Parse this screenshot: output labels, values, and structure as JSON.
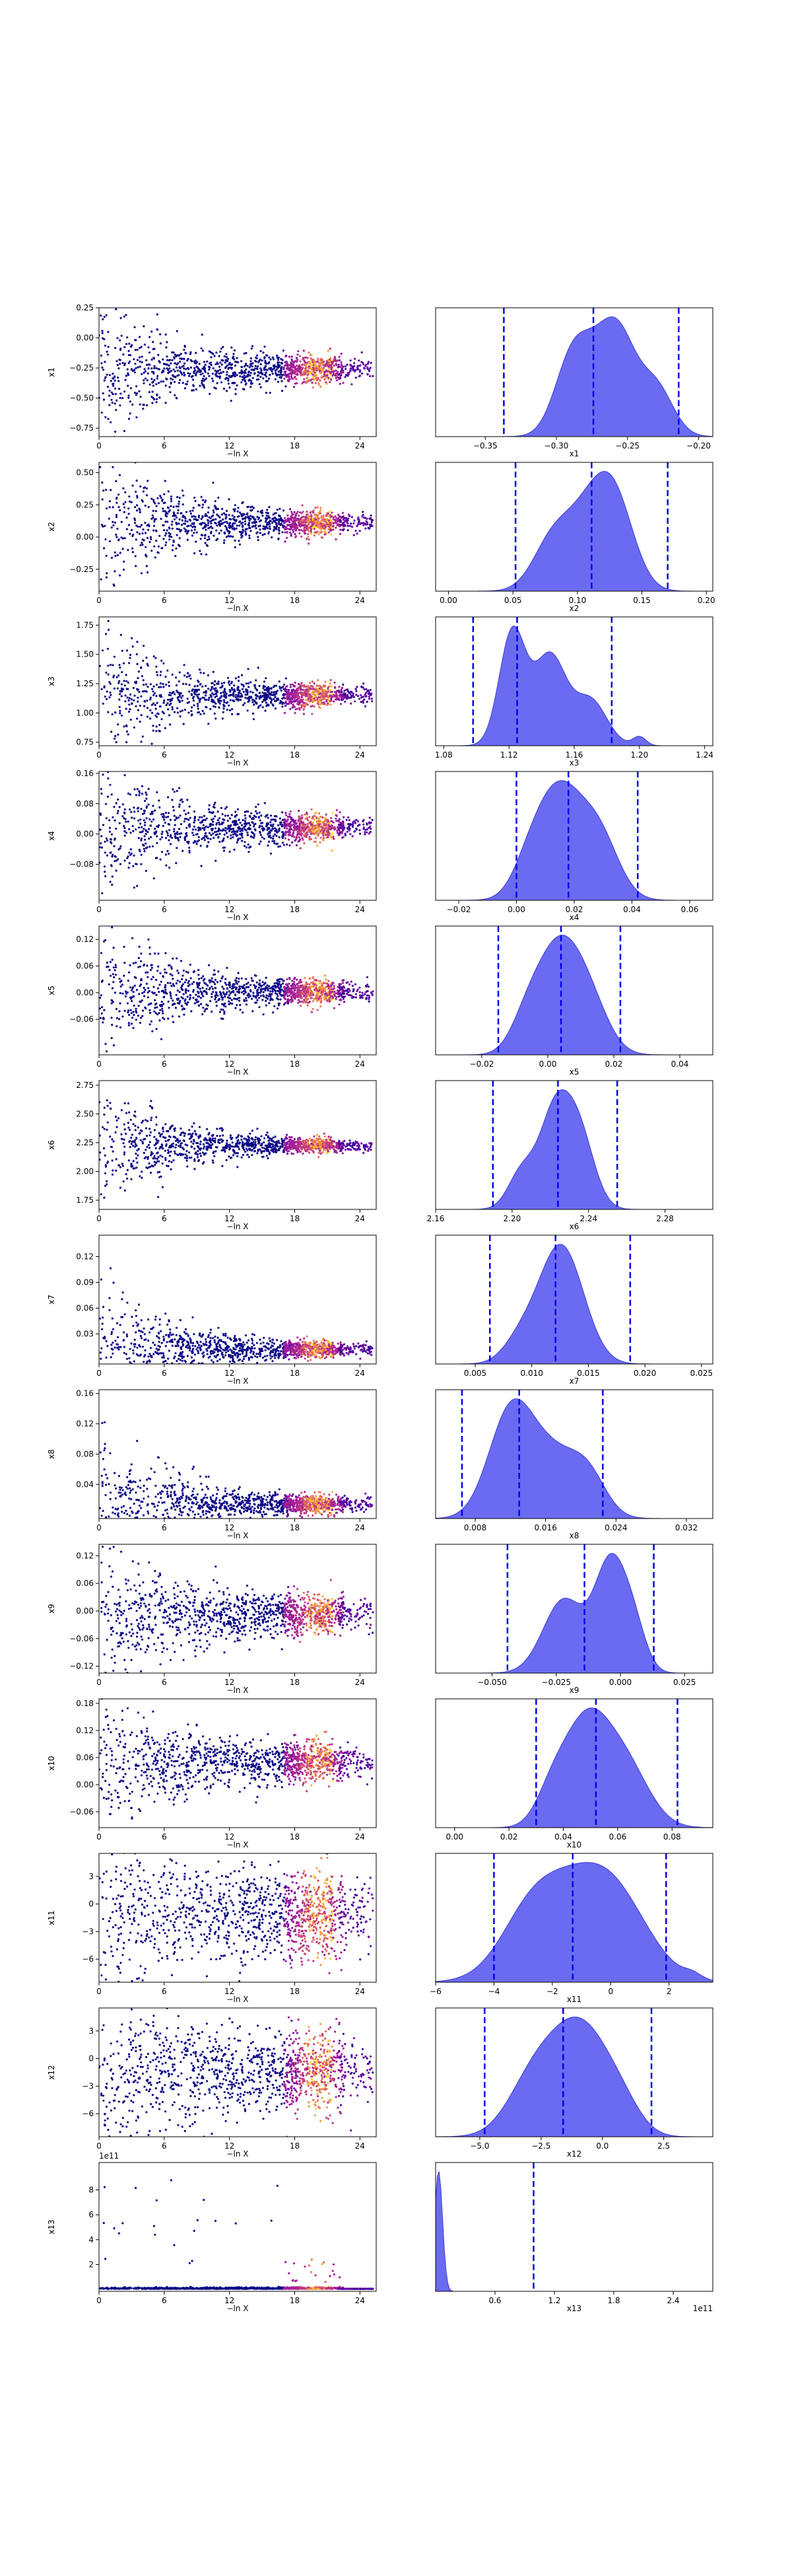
{
  "chart_data": {
    "type": "scatter",
    "colors": {
      "scatter_low": "#0d0887",
      "scatter_high": "#f0f921",
      "kde_fill": "#5b5bf0",
      "quantile_line": "#0000ee"
    },
    "rows": [
      {
        "ylabel": "x1",
        "xlabel": "−ln X",
        "trace": {
          "ylim": [
            -0.82,
            0.25
          ],
          "yticks": [
            "0.25",
            "0.00",
            "−0.25",
            "−0.50",
            "−0.75"
          ],
          "ytick_vals": [
            0.25,
            0,
            -0.25,
            -0.5,
            -0.75
          ],
          "center": -0.26,
          "init_lo": -0.75,
          "init_hi": 0.2,
          "final_spread": 0.05
        },
        "marginal": {
          "xlabel": "x1",
          "xlim": [
            -0.385,
            -0.19
          ],
          "xticks": [
            "−0.35",
            "−0.30",
            "−0.25",
            "−0.20"
          ],
          "xtick_vals": [
            -0.35,
            -0.3,
            -0.25,
            -0.2
          ],
          "quantiles": [
            -0.337,
            -0.274,
            -0.214
          ],
          "peaks": [
            [
              -0.27,
              1.0,
              0.016
            ],
            [
              -0.255,
              0.9,
              0.012
            ],
            [
              -0.29,
              0.85,
              0.012
            ],
            [
              -0.23,
              0.7,
              0.012
            ]
          ]
        }
      },
      {
        "ylabel": "x2",
        "xlabel": "−ln X",
        "trace": {
          "ylim": [
            -0.42,
            0.58
          ],
          "yticks": [
            "0.50",
            "0.25",
            "0.00",
            "−0.25"
          ],
          "ytick_vals": [
            0.5,
            0.25,
            0,
            -0.25
          ],
          "center": 0.11,
          "init_lo": -0.35,
          "init_hi": 0.55,
          "final_spread": 0.04
        },
        "marginal": {
          "xlabel": "x2",
          "xlim": [
            -0.01,
            0.205
          ],
          "xticks": [
            "0.00",
            "0.05",
            "0.10",
            "0.15",
            "0.20"
          ],
          "xtick_vals": [
            0,
            0.05,
            0.1,
            0.15,
            0.2
          ],
          "quantiles": [
            0.052,
            0.111,
            0.17
          ],
          "peaks": [
            [
              0.11,
              1.0,
              0.018
            ],
            [
              0.13,
              0.9,
              0.015
            ],
            [
              0.08,
              0.6,
              0.015
            ]
          ]
        }
      },
      {
        "ylabel": "x3",
        "xlabel": "−ln X",
        "trace": {
          "ylim": [
            0.72,
            1.82
          ],
          "yticks": [
            "1.75",
            "1.50",
            "1.25",
            "1.00",
            "0.75"
          ],
          "ytick_vals": [
            1.75,
            1.5,
            1.25,
            1,
            0.75
          ],
          "center": 1.15,
          "init_lo": 0.75,
          "init_hi": 1.8,
          "final_spread": 0.04
        },
        "marginal": {
          "xlabel": "x3",
          "xlim": [
            1.075,
            1.245
          ],
          "xticks": [
            "1.08",
            "1.12",
            "1.16",
            "1.20",
            "1.24"
          ],
          "xtick_vals": [
            1.08,
            1.12,
            1.16,
            1.2,
            1.24
          ],
          "quantiles": [
            1.098,
            1.125,
            1.183
          ],
          "peaks": [
            [
              1.122,
              1.0,
              0.008
            ],
            [
              1.145,
              0.8,
              0.01
            ],
            [
              1.17,
              0.4,
              0.01
            ],
            [
              1.2,
              0.08,
              0.004
            ]
          ]
        }
      },
      {
        "ylabel": "x4",
        "xlabel": "−ln X",
        "trace": {
          "ylim": [
            -0.175,
            0.165
          ],
          "yticks": [
            "0.16",
            "0.08",
            "0.00",
            "−0.08"
          ],
          "ytick_vals": [
            0.16,
            0.08,
            0,
            -0.08
          ],
          "center": 0.017,
          "init_lo": -0.15,
          "init_hi": 0.15,
          "final_spread": 0.015
        },
        "marginal": {
          "xlabel": "x4",
          "xlim": [
            -0.028,
            0.068
          ],
          "xticks": [
            "−0.02",
            "0.00",
            "0.02",
            "0.04",
            "0.06"
          ],
          "xtick_vals": [
            -0.02,
            0,
            0.02,
            0.04,
            0.06
          ],
          "quantiles": [
            0.0,
            0.018,
            0.042
          ],
          "peaks": [
            [
              0.015,
              1.0,
              0.007
            ],
            [
              0.028,
              0.7,
              0.007
            ],
            [
              0.005,
              0.4,
              0.006
            ]
          ]
        }
      },
      {
        "ylabel": "x5",
        "xlabel": "−ln X",
        "trace": {
          "ylim": [
            -0.14,
            0.15
          ],
          "yticks": [
            "0.12",
            "0.06",
            "0.00",
            "−0.06"
          ],
          "ytick_vals": [
            0.12,
            0.06,
            0,
            -0.06
          ],
          "center": 0.003,
          "init_lo": -0.12,
          "init_hi": 0.14,
          "final_spread": 0.012
        },
        "marginal": {
          "xlabel": "x5",
          "xlim": [
            -0.034,
            0.05
          ],
          "xticks": [
            "−0.02",
            "0.00",
            "0.02",
            "0.04"
          ],
          "xtick_vals": [
            -0.02,
            0,
            0.02,
            0.04
          ],
          "quantiles": [
            -0.015,
            0.004,
            0.022
          ],
          "peaks": [
            [
              0.003,
              1.0,
              0.006
            ],
            [
              0.012,
              0.6,
              0.006
            ],
            [
              -0.006,
              0.4,
              0.005
            ]
          ]
        }
      },
      {
        "ylabel": "x6",
        "xlabel": "−ln X",
        "trace": {
          "ylim": [
            1.67,
            2.79
          ],
          "yticks": [
            "2.75",
            "2.50",
            "2.25",
            "2.00",
            "1.75"
          ],
          "ytick_vals": [
            2.75,
            2.5,
            2.25,
            2,
            1.75
          ],
          "center": 2.225,
          "init_lo": 1.8,
          "init_hi": 2.75,
          "final_spread": 0.025
        },
        "marginal": {
          "xlabel": "x6",
          "xlim": [
            2.16,
            2.305
          ],
          "xticks": [
            "2.16",
            "2.20",
            "2.24",
            "2.28"
          ],
          "xtick_vals": [
            2.16,
            2.2,
            2.24,
            2.28
          ],
          "quantiles": [
            2.19,
            2.224,
            2.255
          ],
          "peaks": [
            [
              2.222,
              1.0,
              0.008
            ],
            [
              2.235,
              0.8,
              0.008
            ],
            [
              2.205,
              0.4,
              0.007
            ]
          ]
        }
      },
      {
        "ylabel": "x7",
        "xlabel": "−ln X",
        "trace": {
          "ylim": [
            -0.005,
            0.145
          ],
          "yticks": [
            "0.12",
            "0.09",
            "0.06",
            "0.03"
          ],
          "ytick_vals": [
            0.12,
            0.09,
            0.06,
            0.03
          ],
          "center": 0.012,
          "init_lo": 0.0,
          "init_hi": 0.14,
          "final_spread": 0.004
        },
        "marginal": {
          "xlabel": "x7",
          "xlim": [
            0.0015,
            0.026
          ],
          "xticks": [
            "0.005",
            "0.010",
            "0.015",
            "0.020",
            "0.025"
          ],
          "xtick_vals": [
            0.005,
            0.01,
            0.015,
            0.02,
            0.025
          ],
          "quantiles": [
            0.0063,
            0.0121,
            0.0187
          ],
          "peaks": [
            [
              0.012,
              1.0,
              0.0018
            ],
            [
              0.0135,
              0.7,
              0.0018
            ],
            [
              0.009,
              0.3,
              0.0015
            ]
          ]
        }
      },
      {
        "ylabel": "x8",
        "xlabel": "−ln X",
        "trace": {
          "ylim": [
            -0.005,
            0.165
          ],
          "yticks": [
            "0.16",
            "0.12",
            "0.08",
            "0.04"
          ],
          "ytick_vals": [
            0.16,
            0.12,
            0.08,
            0.04
          ],
          "center": 0.014,
          "init_lo": 0.0,
          "init_hi": 0.16,
          "final_spread": 0.005
        },
        "marginal": {
          "xlabel": "x8",
          "xlim": [
            0.0035,
            0.035
          ],
          "xticks": [
            "0.008",
            "0.016",
            "0.024",
            "0.032"
          ],
          "xtick_vals": [
            0.008,
            0.016,
            0.024,
            0.032
          ],
          "quantiles": [
            0.0065,
            0.013,
            0.0225
          ],
          "peaks": [
            [
              0.012,
              1.0,
              0.0025
            ],
            [
              0.017,
              0.6,
              0.003
            ],
            [
              0.021,
              0.3,
              0.002
            ]
          ]
        }
      },
      {
        "ylabel": "x9",
        "xlabel": "−ln X",
        "trace": {
          "ylim": [
            -0.135,
            0.145
          ],
          "yticks": [
            "0.12",
            "0.06",
            "0.00",
            "−0.06",
            "−0.12"
          ],
          "ytick_vals": [
            0.12,
            0.06,
            0,
            -0.06,
            -0.12
          ],
          "center": -0.008,
          "init_lo": -0.12,
          "init_hi": 0.14,
          "final_spread": 0.02
        },
        "marginal": {
          "xlabel": "x9",
          "xlim": [
            -0.072,
            0.036
          ],
          "xticks": [
            "−0.050",
            "−0.025",
            "0.000",
            "0.025"
          ],
          "xtick_vals": [
            -0.05,
            -0.025,
            0,
            0.025
          ],
          "quantiles": [
            -0.044,
            -0.014,
            0.013
          ],
          "peaks": [
            [
              -0.004,
              1.0,
              0.006
            ],
            [
              -0.022,
              0.7,
              0.008
            ],
            [
              0.005,
              0.4,
              0.005
            ]
          ]
        }
      },
      {
        "ylabel": "x10",
        "xlabel": "−ln X",
        "trace": {
          "ylim": [
            -0.095,
            0.19
          ],
          "yticks": [
            "0.18",
            "0.12",
            "0.06",
            "0.00",
            "−0.06"
          ],
          "ytick_vals": [
            0.18,
            0.12,
            0.06,
            0,
            -0.06
          ],
          "center": 0.05,
          "init_lo": -0.06,
          "init_hi": 0.18,
          "final_spread": 0.02
        },
        "marginal": {
          "xlabel": "x10",
          "xlim": [
            -0.007,
            0.095
          ],
          "xticks": [
            "0.00",
            "0.02",
            "0.04",
            "0.06",
            "0.08"
          ],
          "xtick_vals": [
            0,
            0.02,
            0.04,
            0.06,
            0.08
          ],
          "quantiles": [
            0.03,
            0.052,
            0.082
          ],
          "peaks": [
            [
              0.048,
              1.0,
              0.008
            ],
            [
              0.062,
              0.7,
              0.009
            ],
            [
              0.036,
              0.35,
              0.006
            ]
          ]
        }
      },
      {
        "ylabel": "x11",
        "xlabel": "−ln X",
        "trace": {
          "ylim": [
            -8.5,
            5.5
          ],
          "yticks": [
            "3",
            "0",
            "−3",
            "−6"
          ],
          "ytick_vals": [
            3,
            0,
            -3,
            -6
          ],
          "center": -1.2,
          "init_lo": -7.5,
          "init_hi": 5,
          "final_spread": 2.2
        },
        "marginal": {
          "xlabel": "x11",
          "xlim": [
            -6.0,
            3.5
          ],
          "xticks": [
            "−6",
            "−4",
            "−2",
            "0",
            "2"
          ],
          "xtick_vals": [
            -6,
            -4,
            -2,
            0,
            2
          ],
          "quantiles": [
            -4.0,
            -1.3,
            1.9
          ],
          "peaks": [
            [
              -1.3,
              1.0,
              1.5
            ],
            [
              0.2,
              0.7,
              1.2
            ],
            [
              -2.8,
              0.5,
              1.0
            ],
            [
              2.8,
              0.06,
              0.3
            ]
          ]
        }
      },
      {
        "ylabel": "x12",
        "xlabel": "−ln X",
        "trace": {
          "ylim": [
            -8.5,
            5.5
          ],
          "yticks": [
            "3",
            "0",
            "−3",
            "−6"
          ],
          "ytick_vals": [
            3,
            0,
            -3,
            -6
          ],
          "center": -1.5,
          "init_lo": -7.5,
          "init_hi": 5,
          "final_spread": 2.0
        },
        "marginal": {
          "xlabel": "x12",
          "xlim": [
            -6.8,
            4.5
          ],
          "xticks": [
            "−5.0",
            "−2.5",
            "0.0",
            "2.5"
          ],
          "xtick_vals": [
            -5,
            -2.5,
            0,
            2.5
          ],
          "quantiles": [
            -4.8,
            -1.6,
            2.0
          ],
          "peaks": [
            [
              -1.6,
              1.0,
              1.2
            ],
            [
              -0.5,
              0.8,
              1.0
            ],
            [
              -3.0,
              0.5,
              1.0
            ],
            [
              0.8,
              0.35,
              0.8
            ]
          ]
        }
      },
      {
        "ylabel": "x13",
        "xlabel": "−ln X",
        "offset": "1e11",
        "trace": {
          "ylim": [
            -0.15,
            10.2
          ],
          "yticks": [
            "8",
            "6",
            "4",
            "2"
          ],
          "ytick_vals": [
            8,
            6,
            4,
            2
          ],
          "center": 0.05,
          "init_lo": 0,
          "init_hi": 9.5,
          "final_spread": 0.05,
          "heavy": true
        },
        "marginal": {
          "xlabel": "x13",
          "offset": "1e11",
          "xlim": [
            0.0,
            2.8
          ],
          "xticks": [
            "0.6",
            "1.2",
            "1.8",
            "2.4"
          ],
          "xtick_vals": [
            0.6,
            1.2,
            1.8,
            2.4
          ],
          "quantiles": [
            0.99
          ],
          "peaks": [
            [
              0.03,
              1.0,
              0.04
            ]
          ]
        }
      }
    ],
    "trace_xlim": [
      0,
      25.5
    ],
    "trace_xticks": [
      "0",
      "6",
      "12",
      "18",
      "24"
    ],
    "trace_xtick_vals": [
      0,
      6,
      12,
      18,
      24
    ]
  }
}
